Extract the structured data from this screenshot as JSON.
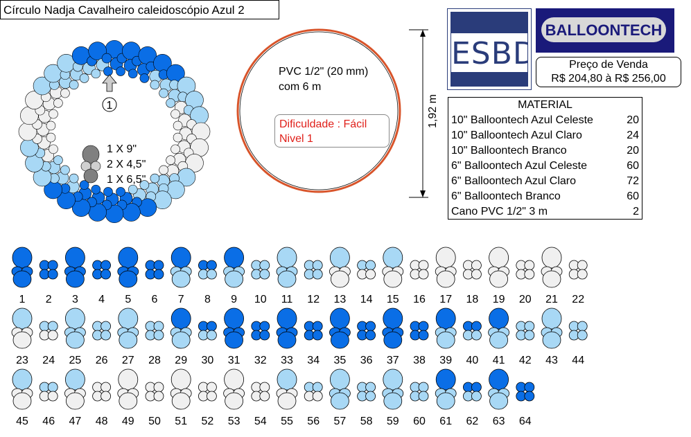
{
  "title": "Círculo Nadja Cavalheiro caleidoscópio Azul  2",
  "colors": {
    "celeste": "#0a6ee6",
    "claro": "#a8d8f5",
    "branco": "#f0f0f0",
    "gray": "#808080",
    "ring": "#d8542a",
    "red_text": "#e0201a"
  },
  "ring_legend": {
    "marker": "1",
    "lines": [
      "1 X 9\"",
      "2 X 4,5\"",
      "1 X 6,5\""
    ]
  },
  "pvc": {
    "line1": "PVC 1/2\" (20 mm)",
    "line2": "com 6 m",
    "dimension": "1,92 m"
  },
  "difficulty": {
    "line1": "Dificuldade : Fácil",
    "line2": "Nivel 1"
  },
  "logos": {
    "esbd": "ESBD",
    "balloontech": "BALLOONTECH"
  },
  "price": {
    "label": "Preço de Venda",
    "value": "R$ 204,80 à R$ 256,00"
  },
  "material": {
    "title": "MATERIAL",
    "items": [
      {
        "name": "10\" Balloontech Azul Celeste",
        "qty": "20"
      },
      {
        "name": "10\" Balloontech Azul Claro",
        "qty": "24"
      },
      {
        "name": "10\" Balloontech Branco",
        "qty": "20"
      },
      {
        "name": "6\" Balloontech Azul Celeste",
        "qty": "60"
      },
      {
        "name": "6\" Balloontech Azul Claro",
        "qty": "72"
      },
      {
        "name": "6\" Balloontech Branco",
        "qty": "60"
      },
      {
        "name": "Cano PVC 1/2\" 3 m",
        "qty": "2"
      }
    ]
  },
  "clusters": [
    {
      "n": "1",
      "t": "big",
      "c": "celeste"
    },
    {
      "n": "2",
      "t": "small",
      "c": "celeste"
    },
    {
      "n": "3",
      "t": "big",
      "c": "celeste"
    },
    {
      "n": "4",
      "t": "small",
      "c": "celeste"
    },
    {
      "n": "5",
      "t": "big",
      "c": "celeste"
    },
    {
      "n": "6",
      "t": "small",
      "c": "celeste"
    },
    {
      "n": "7",
      "t": "big",
      "c": "celeste",
      "b": "claro"
    },
    {
      "n": "8",
      "t": "small",
      "c": "celeste",
      "b": "claro"
    },
    {
      "n": "9",
      "t": "big",
      "c": "celeste",
      "b": "claro"
    },
    {
      "n": "10",
      "t": "small",
      "c": "claro"
    },
    {
      "n": "11",
      "t": "big",
      "c": "claro"
    },
    {
      "n": "12",
      "t": "small",
      "c": "claro"
    },
    {
      "n": "13",
      "t": "big",
      "c": "claro",
      "b": "branco"
    },
    {
      "n": "14",
      "t": "small",
      "c": "claro",
      "b": "branco"
    },
    {
      "n": "15",
      "t": "big",
      "c": "claro",
      "b": "branco"
    },
    {
      "n": "16",
      "t": "small",
      "c": "branco"
    },
    {
      "n": "17",
      "t": "big",
      "c": "branco"
    },
    {
      "n": "18",
      "t": "small",
      "c": "branco"
    },
    {
      "n": "19",
      "t": "big",
      "c": "branco"
    },
    {
      "n": "20",
      "t": "small",
      "c": "branco"
    },
    {
      "n": "21",
      "t": "big",
      "c": "branco"
    },
    {
      "n": "22",
      "t": "small",
      "c": "branco"
    },
    {
      "n": "23",
      "t": "big",
      "c": "claro",
      "b": "branco"
    },
    {
      "n": "24",
      "t": "small",
      "c": "claro",
      "b": "branco"
    },
    {
      "n": "25",
      "t": "big",
      "c": "claro"
    },
    {
      "n": "26",
      "t": "small",
      "c": "claro"
    },
    {
      "n": "27",
      "t": "big",
      "c": "claro"
    },
    {
      "n": "28",
      "t": "small",
      "c": "claro"
    },
    {
      "n": "29",
      "t": "big",
      "c": "celeste",
      "b": "claro"
    },
    {
      "n": "30",
      "t": "small",
      "c": "celeste",
      "b": "claro"
    },
    {
      "n": "31",
      "t": "big",
      "c": "celeste"
    },
    {
      "n": "32",
      "t": "small",
      "c": "celeste"
    },
    {
      "n": "33",
      "t": "big",
      "c": "celeste"
    },
    {
      "n": "34",
      "t": "small",
      "c": "celeste"
    },
    {
      "n": "35",
      "t": "big",
      "c": "celeste"
    },
    {
      "n": "36",
      "t": "small",
      "c": "celeste"
    },
    {
      "n": "37",
      "t": "big",
      "c": "celeste"
    },
    {
      "n": "38",
      "t": "small",
      "c": "celeste"
    },
    {
      "n": "39",
      "t": "big",
      "c": "celeste",
      "b": "claro"
    },
    {
      "n": "40",
      "t": "small",
      "c": "celeste",
      "b": "claro"
    },
    {
      "n": "41",
      "t": "big",
      "c": "celeste",
      "b": "claro"
    },
    {
      "n": "42",
      "t": "small",
      "c": "claro"
    },
    {
      "n": "43",
      "t": "big",
      "c": "claro"
    },
    {
      "n": "44",
      "t": "small",
      "c": "claro"
    },
    {
      "n": "45",
      "t": "big",
      "c": "claro",
      "b": "branco"
    },
    {
      "n": "46",
      "t": "small",
      "c": "claro",
      "b": "branco"
    },
    {
      "n": "47",
      "t": "big",
      "c": "claro",
      "b": "branco"
    },
    {
      "n": "48",
      "t": "small",
      "c": "branco"
    },
    {
      "n": "49",
      "t": "big",
      "c": "branco"
    },
    {
      "n": "50",
      "t": "small",
      "c": "branco"
    },
    {
      "n": "51",
      "t": "big",
      "c": "branco"
    },
    {
      "n": "52",
      "t": "small",
      "c": "branco"
    },
    {
      "n": "53",
      "t": "big",
      "c": "branco"
    },
    {
      "n": "54",
      "t": "small",
      "c": "branco"
    },
    {
      "n": "55",
      "t": "big",
      "c": "claro",
      "b": "branco"
    },
    {
      "n": "56",
      "t": "small",
      "c": "claro",
      "b": "branco"
    },
    {
      "n": "57",
      "t": "big",
      "c": "claro"
    },
    {
      "n": "58",
      "t": "small",
      "c": "claro"
    },
    {
      "n": "59",
      "t": "big",
      "c": "claro"
    },
    {
      "n": "60",
      "t": "small",
      "c": "claro"
    },
    {
      "n": "61",
      "t": "big",
      "c": "celeste",
      "b": "claro"
    },
    {
      "n": "62",
      "t": "small",
      "c": "celeste",
      "b": "claro"
    },
    {
      "n": "63",
      "t": "big",
      "c": "celeste",
      "b": "claro"
    },
    {
      "n": "64",
      "t": "small",
      "c": "celeste"
    }
  ]
}
